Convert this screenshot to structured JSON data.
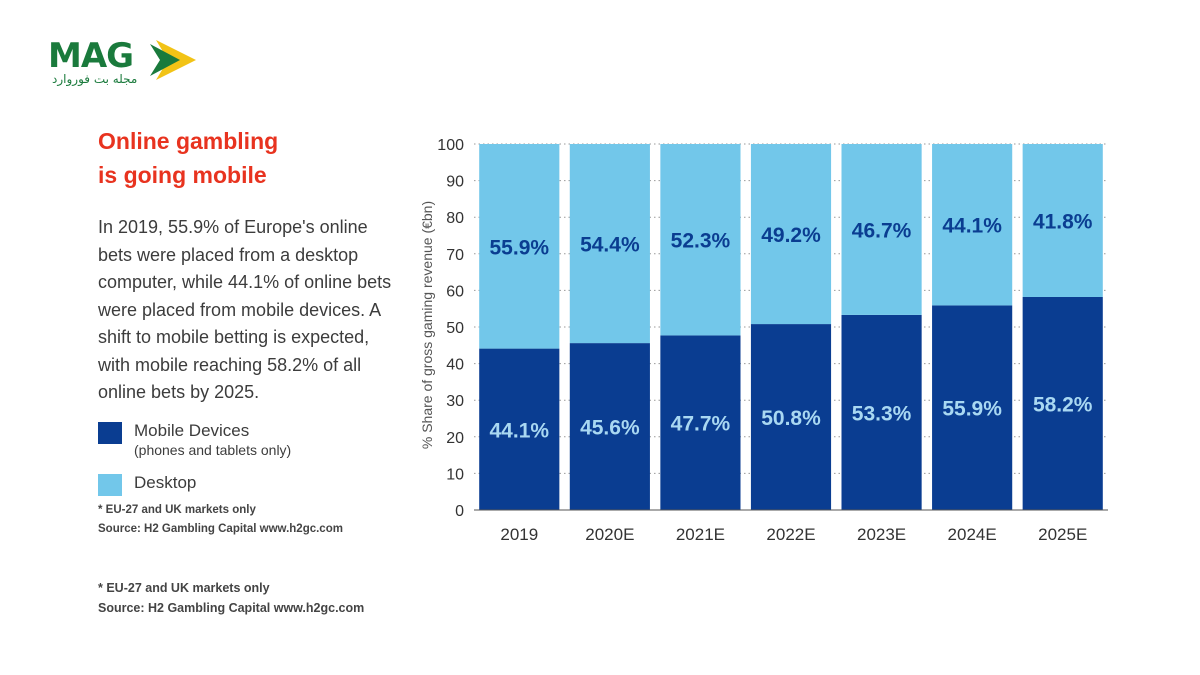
{
  "logo": {
    "word": "MAG",
    "subtitle": "مجله بت فوروارد",
    "colors": {
      "green": "#1a7a3c",
      "yellow": "#f2c316"
    }
  },
  "title": {
    "line1": "Online gambling",
    "line2": "is going mobile"
  },
  "description": "In 2019, 55.9% of Europe's online bets were placed from a desktop computer, while 44.1% of online bets were placed from mobile devices. A shift to mobile betting is expected, with mobile reaching 58.2% of all online bets by 2025.",
  "legend": {
    "mobile": {
      "label": "Mobile Devices",
      "sublabel": "(phones and tablets only)",
      "color": "#0a3d91"
    },
    "desktop": {
      "label": "Desktop",
      "color": "#72c7ea"
    }
  },
  "notes": {
    "inner": {
      "markets": "* EU-27 and UK markets only",
      "source": "Source: H2 Gambling Capital www.h2gc.com"
    },
    "outer": {
      "markets": "* EU-27 and UK markets only",
      "source": "Source: H2 Gambling Capital www.h2gc.com"
    }
  },
  "chart_data": {
    "type": "bar",
    "stacked": true,
    "categories": [
      "2019",
      "2020E",
      "2021E",
      "2022E",
      "2023E",
      "2024E",
      "2025E"
    ],
    "series": [
      {
        "name": "Mobile Devices",
        "values": [
          44.1,
          45.6,
          47.7,
          50.8,
          53.3,
          55.9,
          58.2
        ],
        "labels": [
          "44.1%",
          "45.6%",
          "47.7%",
          "50.8%",
          "53.3%",
          "55.9%",
          "58.2%"
        ],
        "color": "#0a3d91",
        "label_color": "#a9d8f2"
      },
      {
        "name": "Desktop",
        "values": [
          55.9,
          54.4,
          52.3,
          49.2,
          46.7,
          44.1,
          41.8
        ],
        "labels": [
          "55.9%",
          "54.4%",
          "52.3%",
          "49.2%",
          "46.7%",
          "44.1%",
          "41.8%"
        ],
        "color": "#72c7ea",
        "label_color": "#0a3d91"
      }
    ],
    "ylabel": "% Share of gross gaming revenue (€bn)",
    "ylim": [
      0,
      100
    ],
    "yticks": [
      0,
      10,
      20,
      30,
      40,
      50,
      60,
      70,
      80,
      90,
      100
    ],
    "grid": true
  }
}
